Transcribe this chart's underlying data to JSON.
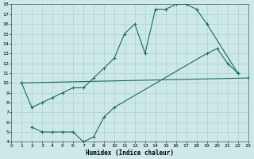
{
  "bg_color": "#cce8e8",
  "grid_color": "#b0d0d0",
  "line_color": "#1a6b5a",
  "line_width": 0.8,
  "marker": "+",
  "marker_size": 3,
  "marker_edge_width": 0.8,
  "xlim": [
    0,
    23
  ],
  "ylim": [
    4,
    18
  ],
  "xticks": [
    0,
    1,
    2,
    3,
    4,
    5,
    6,
    7,
    8,
    9,
    10,
    11,
    12,
    13,
    14,
    15,
    16,
    17,
    18,
    19,
    20,
    21,
    22,
    23
  ],
  "yticks": [
    4,
    5,
    6,
    7,
    8,
    9,
    10,
    11,
    12,
    13,
    14,
    15,
    16,
    17,
    18
  ],
  "xlabel": "Humidex (Indice chaleur)",
  "curve1_x": [
    1,
    2,
    3,
    4,
    5,
    6,
    7,
    8,
    9,
    10,
    11,
    12,
    13,
    14,
    15,
    16,
    17,
    18,
    19,
    22
  ],
  "curve1_y": [
    10,
    7.5,
    8.0,
    8.5,
    9.0,
    9.5,
    9.5,
    10.5,
    11.5,
    12.5,
    15.0,
    16.0,
    13.0,
    17.5,
    17.5,
    18.0,
    18.0,
    17.5,
    16.0,
    11.0
  ],
  "curve2_x": [
    1,
    23
  ],
  "curve2_y": [
    10,
    10.5
  ],
  "curve3_x": [
    2,
    3,
    4,
    5,
    6,
    7,
    8,
    9,
    10,
    19,
    20,
    21,
    22
  ],
  "curve3_y": [
    5.5,
    5.0,
    5.0,
    5.0,
    5.0,
    4.0,
    4.5,
    6.5,
    7.5,
    13.0,
    13.5,
    12.0,
    11.0
  ]
}
